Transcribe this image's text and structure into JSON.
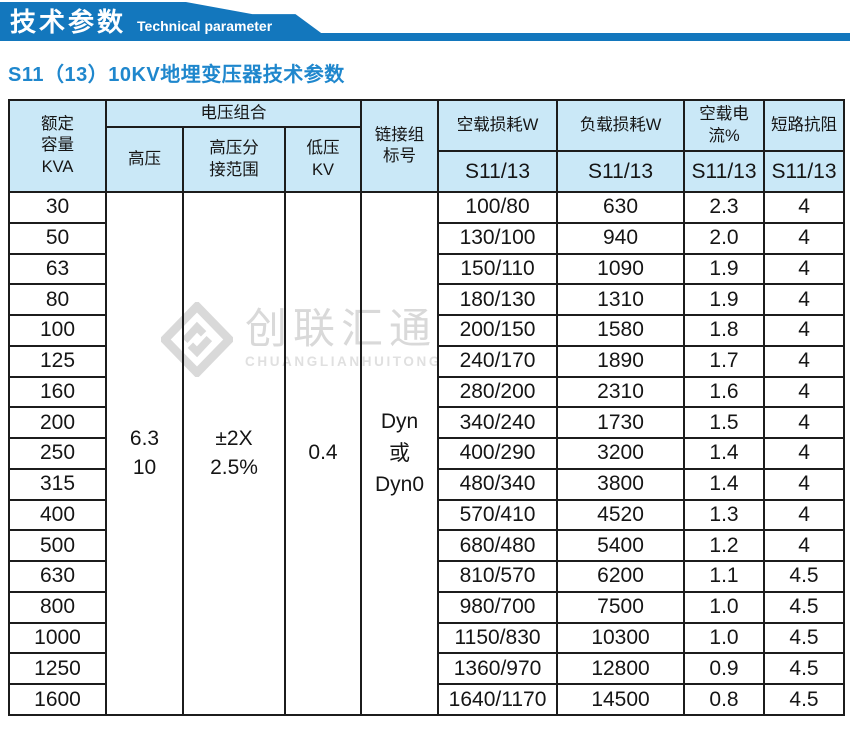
{
  "banner": {
    "title_cn": "技术参数",
    "title_en": "Technical parameter",
    "color": "#1377bd"
  },
  "page": {
    "title": "S11（13）10KV地埋变压器技术参数",
    "title_color": "#1f87cd"
  },
  "watermark": {
    "cn": "创联汇通",
    "en": "CHUANGLIANHUITONG",
    "color": "#d9d9d9"
  },
  "table": {
    "header_bg": "#cae8f7",
    "border_color": "#1c1c1c",
    "headers": {
      "capacity": "额定\n容量\nKVA",
      "voltage_combo": "电压组合",
      "hv": "高压",
      "hv_tap_range": "高压分\n接范围",
      "lv": "低压\nKV",
      "vector_group": "链接组\n标号",
      "no_load_loss": "空载损耗W",
      "load_loss": "负载损耗W",
      "no_load_current": "空载电流%",
      "impedance": "短路抗阻",
      "series": "S11/13"
    },
    "merged": {
      "hv": "6.3\n10",
      "hv_tap_range": "±2X\n2.5%",
      "lv": "0.4",
      "vector_group": "Dyn\n或\nDyn0"
    },
    "rows": [
      {
        "kva": "30",
        "no_load_loss": "100/80",
        "load_loss": "630",
        "no_load_current": "2.3",
        "impedance": "4"
      },
      {
        "kva": "50",
        "no_load_loss": "130/100",
        "load_loss": "940",
        "no_load_current": "2.0",
        "impedance": "4"
      },
      {
        "kva": "63",
        "no_load_loss": "150/110",
        "load_loss": "1090",
        "no_load_current": "1.9",
        "impedance": "4"
      },
      {
        "kva": "80",
        "no_load_loss": "180/130",
        "load_loss": "1310",
        "no_load_current": "1.9",
        "impedance": "4"
      },
      {
        "kva": "100",
        "no_load_loss": "200/150",
        "load_loss": "1580",
        "no_load_current": "1.8",
        "impedance": "4"
      },
      {
        "kva": "125",
        "no_load_loss": "240/170",
        "load_loss": "1890",
        "no_load_current": "1.7",
        "impedance": "4"
      },
      {
        "kva": "160",
        "no_load_loss": "280/200",
        "load_loss": "2310",
        "no_load_current": "1.6",
        "impedance": "4"
      },
      {
        "kva": "200",
        "no_load_loss": "340/240",
        "load_loss": "1730",
        "no_load_current": "1.5",
        "impedance": "4"
      },
      {
        "kva": "250",
        "no_load_loss": "400/290",
        "load_loss": "3200",
        "no_load_current": "1.4",
        "impedance": "4"
      },
      {
        "kva": "315",
        "no_load_loss": "480/340",
        "load_loss": "3800",
        "no_load_current": "1.4",
        "impedance": "4"
      },
      {
        "kva": "400",
        "no_load_loss": "570/410",
        "load_loss": "4520",
        "no_load_current": "1.3",
        "impedance": "4"
      },
      {
        "kva": "500",
        "no_load_loss": "680/480",
        "load_loss": "5400",
        "no_load_current": "1.2",
        "impedance": "4"
      },
      {
        "kva": "630",
        "no_load_loss": "810/570",
        "load_loss": "6200",
        "no_load_current": "1.1",
        "impedance": "4.5"
      },
      {
        "kva": "800",
        "no_load_loss": "980/700",
        "load_loss": "7500",
        "no_load_current": "1.0",
        "impedance": "4.5"
      },
      {
        "kva": "1000",
        "no_load_loss": "1150/830",
        "load_loss": "10300",
        "no_load_current": "1.0",
        "impedance": "4.5"
      },
      {
        "kva": "1250",
        "no_load_loss": "1360/970",
        "load_loss": "12800",
        "no_load_current": "0.9",
        "impedance": "4.5"
      },
      {
        "kva": "1600",
        "no_load_loss": "1640/1170",
        "load_loss": "14500",
        "no_load_current": "0.8",
        "impedance": "4.5"
      }
    ]
  }
}
